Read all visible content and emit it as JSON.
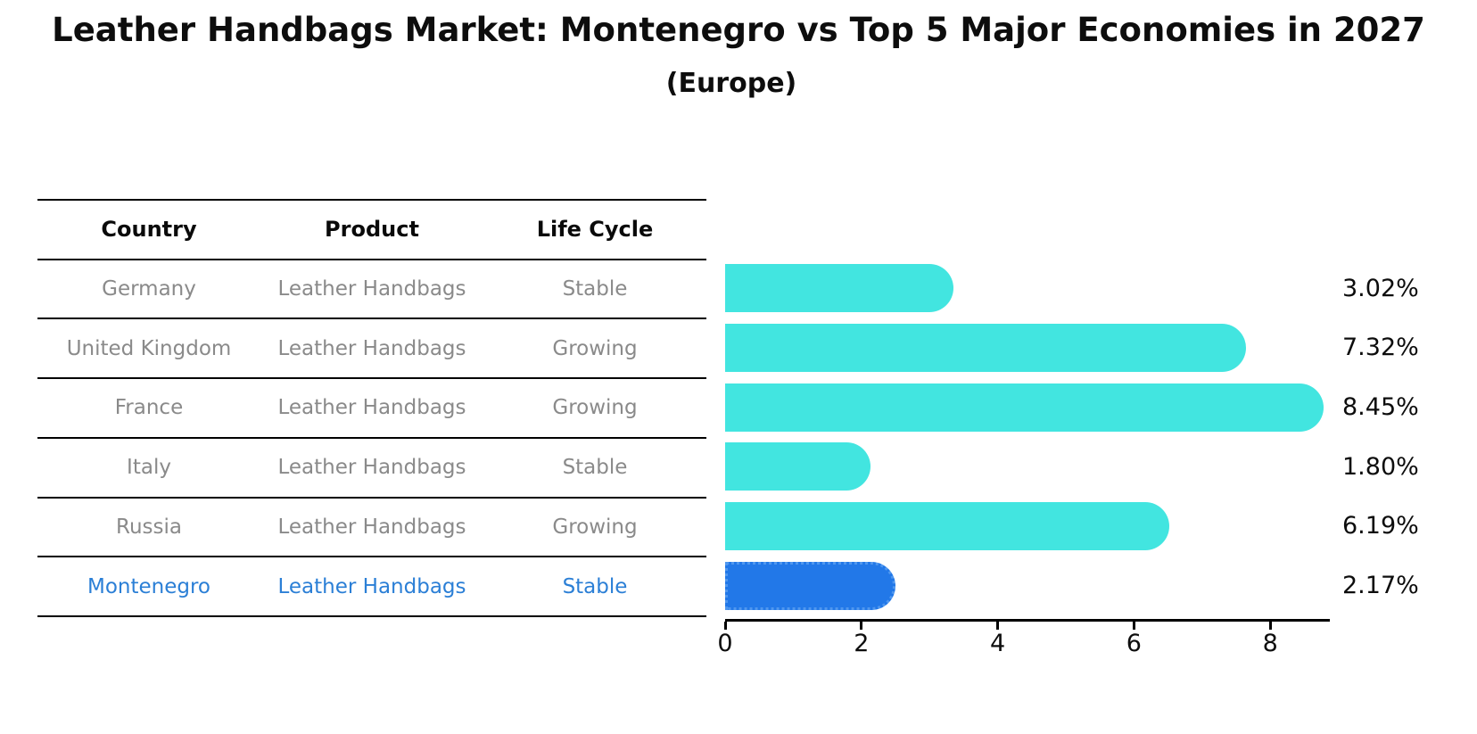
{
  "title": "Leather Handbags Market: Montenegro vs Top 5 Major Economies in 2027",
  "subtitle": "(Europe)",
  "table": {
    "headers": [
      "Country",
      "Product",
      "Life Cycle"
    ],
    "rows": [
      {
        "country": "Germany",
        "product": "Leather Handbags",
        "life_cycle": "Stable",
        "highlighted": false
      },
      {
        "country": "United Kingdom",
        "product": "Leather Handbags",
        "life_cycle": "Growing",
        "highlighted": false
      },
      {
        "country": "France",
        "product": "Leather Handbags",
        "life_cycle": "Growing",
        "highlighted": false
      },
      {
        "country": "Italy",
        "product": "Leather Handbags",
        "life_cycle": "Stable",
        "highlighted": false
      },
      {
        "country": "Russia",
        "product": "Leather Handbags",
        "life_cycle": "Growing",
        "highlighted": false
      },
      {
        "country": "Montenegro",
        "product": "Leather Handbags",
        "life_cycle": "Stable",
        "highlighted": true
      }
    ]
  },
  "chart_data": {
    "type": "bar",
    "orientation": "horizontal",
    "title": "Leather Handbags Market: Montenegro vs Top 5 Major Economies in 2027",
    "subtitle": "(Europe)",
    "categories": [
      "Germany",
      "United Kingdom",
      "France",
      "Italy",
      "Russia",
      "Montenegro"
    ],
    "values": [
      3.02,
      7.32,
      8.45,
      1.8,
      6.19,
      2.17
    ],
    "value_labels": [
      "3.02%",
      "7.32%",
      "8.45%",
      "1.80%",
      "6.19%",
      "2.17%"
    ],
    "x_ticks": [
      0,
      2,
      4,
      6,
      8
    ],
    "xlim": [
      0,
      8.9
    ],
    "grid": false,
    "legend": "none",
    "highlight_index": 5,
    "bar_color": "#42e5e0",
    "highlight_color": "#2278e8",
    "highlight_text_color": "#2b7fd6"
  }
}
